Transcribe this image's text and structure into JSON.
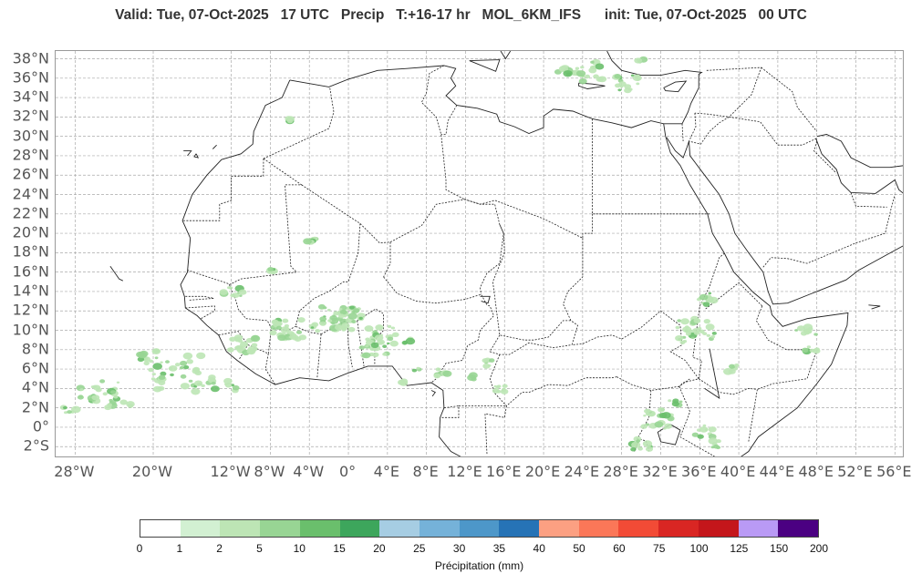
{
  "title": "Valid: Tue, 07-Oct-2025   17 UTC   Precip   T:+16-17 hr   MOL_6KM_IFS      init: Tue, 07-Oct-2025   00 UTC",
  "map": {
    "lon_range": [
      -30,
      57
    ],
    "lat_range": [
      -3.2,
      38.8
    ],
    "lat_labels": [
      "38°N",
      "36°N",
      "34°N",
      "32°N",
      "30°N",
      "28°N",
      "26°N",
      "24°N",
      "22°N",
      "20°N",
      "18°N",
      "16°N",
      "14°N",
      "12°N",
      "10°N",
      "8°N",
      "6°N",
      "4°N",
      "2°N",
      "0°",
      "2°S"
    ],
    "lat_values": [
      38,
      36,
      34,
      32,
      30,
      28,
      26,
      24,
      22,
      20,
      18,
      16,
      14,
      12,
      10,
      8,
      6,
      4,
      2,
      0,
      -2
    ],
    "lon_labels": [
      "28°W",
      "20°W",
      "12°W",
      "8°W",
      "4°W",
      "0°",
      "4°E",
      "8°E",
      "12°E",
      "16°E",
      "20°E",
      "24°E",
      "28°E",
      "32°E",
      "36°E",
      "40°E",
      "44°E",
      "48°E",
      "52°E",
      "56°E"
    ],
    "lon_values": [
      -28,
      -20,
      -12,
      -8,
      -4,
      0,
      4,
      8,
      12,
      16,
      20,
      24,
      28,
      32,
      36,
      40,
      44,
      48,
      52,
      56
    ],
    "gridlines": true
  },
  "colorbar": {
    "title": "Précipitation (mm)",
    "ticks": [
      "0",
      "1",
      "2",
      "5",
      "10",
      "15",
      "20",
      "25",
      "30",
      "35",
      "40",
      "50",
      "60",
      "75",
      "100",
      "125",
      "150",
      "200"
    ],
    "colors": [
      "#ffffff",
      "#d2f0d2",
      "#bde5b5",
      "#98d594",
      "#6abf6c",
      "#3da65c",
      "#a6cde3",
      "#75b2d9",
      "#4d97c9",
      "#2673b6",
      "#fca082",
      "#fb7758",
      "#f24b36",
      "#d92623",
      "#c4161b",
      "#b99af5",
      "#4b0082"
    ]
  }
}
